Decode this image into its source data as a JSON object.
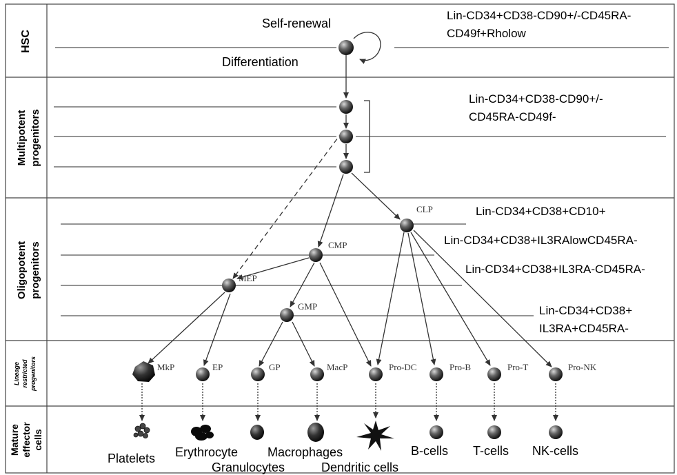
{
  "bands": [
    {
      "id": "hsc",
      "lines": [
        "HSC"
      ]
    },
    {
      "id": "multipotent",
      "lines": [
        "Multipotent",
        "progenitors"
      ]
    },
    {
      "id": "oligopotent",
      "lines": [
        "Oligopotent",
        "progenitors"
      ]
    },
    {
      "id": "lineage",
      "lines": [
        "Lineage",
        "restricted",
        "progenitors"
      ]
    },
    {
      "id": "mature",
      "lines": [
        "Mature",
        "effector",
        "cells"
      ]
    }
  ],
  "hsc_annotations": {
    "self_renewal": "Self-renewal",
    "differentiation": "Differentiation"
  },
  "markers": {
    "hsc": [
      "Lin-CD34+CD38-CD90+/-CD45RA-",
      "CD49f+Rholow"
    ],
    "mpp": [
      "Lin-CD34+CD38-CD90+/-",
      "CD45RA-CD49f-"
    ],
    "clp": [
      "Lin-CD34+CD38+CD10+"
    ],
    "cmp": [
      "Lin-CD34+CD38+IL3RAlowCD45RA-"
    ],
    "mep": [
      "Lin-CD34+CD38+IL3RA-CD45RA-"
    ],
    "gmp": [
      "Lin-CD34+CD38+",
      "IL3RA+CD45RA-"
    ]
  },
  "progenitor_labels": {
    "clp": "CLP",
    "cmp": "CMP",
    "mep": "MEP",
    "gmp": "GMP"
  },
  "lineage_labels": [
    "MkP",
    "EP",
    "GP",
    "MacP",
    "Pro-DC",
    "Pro-B",
    "Pro-T",
    "Pro-NK"
  ],
  "mature_labels": {
    "platelets": "Platelets",
    "erythrocyte": "Erythrocyte",
    "granulocytes": "Granulocytes",
    "macrophages": "Macrophages",
    "dendritic": "Dendritic cells",
    "bcells": "B-cells",
    "tcells": "T-cells",
    "nkcells": "NK-cells"
  },
  "colors": {
    "line": "#555555",
    "cell_dark": "#1a1a1a",
    "cell_light": "#cfcfcf",
    "text": "#000000"
  }
}
